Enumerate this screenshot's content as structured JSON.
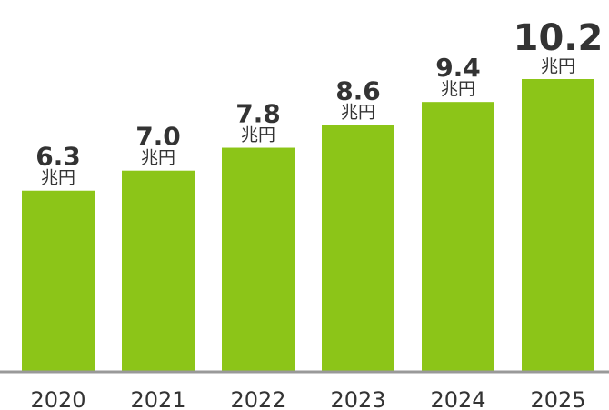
{
  "chart_data": {
    "type": "bar",
    "categories": [
      "2020",
      "2021",
      "2022",
      "2023",
      "2024",
      "2025"
    ],
    "values": [
      6.3,
      7.0,
      7.8,
      8.6,
      9.4,
      10.2
    ],
    "value_labels": [
      "6.3",
      "7.0",
      "7.8",
      "8.6",
      "9.4",
      "10.2"
    ],
    "unit": "兆円",
    "title": "",
    "xlabel": "",
    "ylabel": "",
    "ylim": [
      0,
      10.2
    ],
    "grid": false,
    "colors": {
      "bar": "#8cc518",
      "axis": "#999999",
      "text": "#333333"
    }
  }
}
